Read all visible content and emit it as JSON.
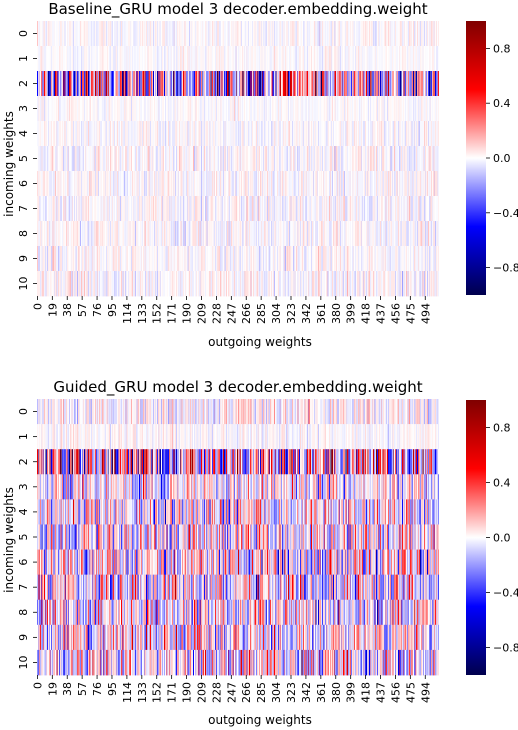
{
  "colormap": {
    "name": "seismic",
    "stops": [
      "#00004c",
      "#0000ff",
      "#ffffff",
      "#ff0000",
      "#800000"
    ],
    "vmin": -1.0,
    "vmax": 1.0
  },
  "chart_data": [
    {
      "type": "heatmap",
      "title": "Baseline_GRU model 3 decoder.embedding.weight",
      "xlabel": "outgoing weights",
      "ylabel": "incoming weights",
      "rows": [
        "0",
        "1",
        "2",
        "3",
        "4",
        "5",
        "6",
        "7",
        "8",
        "9",
        "10"
      ],
      "num_columns": 512,
      "x_ticks": [
        "0",
        "19",
        "38",
        "57",
        "76",
        "95",
        "114",
        "133",
        "152",
        "171",
        "190",
        "209",
        "228",
        "247",
        "266",
        "285",
        "304",
        "323",
        "342",
        "361",
        "380",
        "399",
        "418",
        "437",
        "456",
        "475",
        "494"
      ],
      "x_tick_step": 19,
      "colorbar_ticks": [
        -0.8,
        -0.4,
        0.0,
        0.4,
        0.8
      ],
      "colorbar_tick_labels": [
        "−0.8",
        "−0.4",
        "0.0",
        "0.4",
        "0.8"
      ],
      "row_value_spread": [
        0.07,
        0.05,
        0.65,
        0.05,
        0.07,
        0.09,
        0.08,
        0.09,
        0.09,
        0.08,
        0.1
      ]
    },
    {
      "type": "heatmap",
      "title": "Guided_GRU model 3 decoder.embedding.weight",
      "xlabel": "outgoing weights",
      "ylabel": "incoming weights",
      "rows": [
        "0",
        "1",
        "2",
        "3",
        "4",
        "5",
        "6",
        "7",
        "8",
        "9",
        "10"
      ],
      "num_columns": 512,
      "x_ticks": [
        "0",
        "19",
        "38",
        "57",
        "76",
        "95",
        "114",
        "133",
        "152",
        "171",
        "190",
        "209",
        "228",
        "247",
        "266",
        "285",
        "304",
        "323",
        "342",
        "361",
        "380",
        "399",
        "418",
        "437",
        "456",
        "475",
        "494"
      ],
      "x_tick_step": 19,
      "colorbar_ticks": [
        -0.8,
        -0.4,
        0.0,
        0.4,
        0.8
      ],
      "colorbar_tick_labels": [
        "−0.8",
        "−0.4",
        "0.0",
        "0.4",
        "0.8"
      ],
      "row_value_spread": [
        0.15,
        0.08,
        0.75,
        0.3,
        0.35,
        0.4,
        0.42,
        0.42,
        0.4,
        0.38,
        0.42
      ]
    }
  ]
}
